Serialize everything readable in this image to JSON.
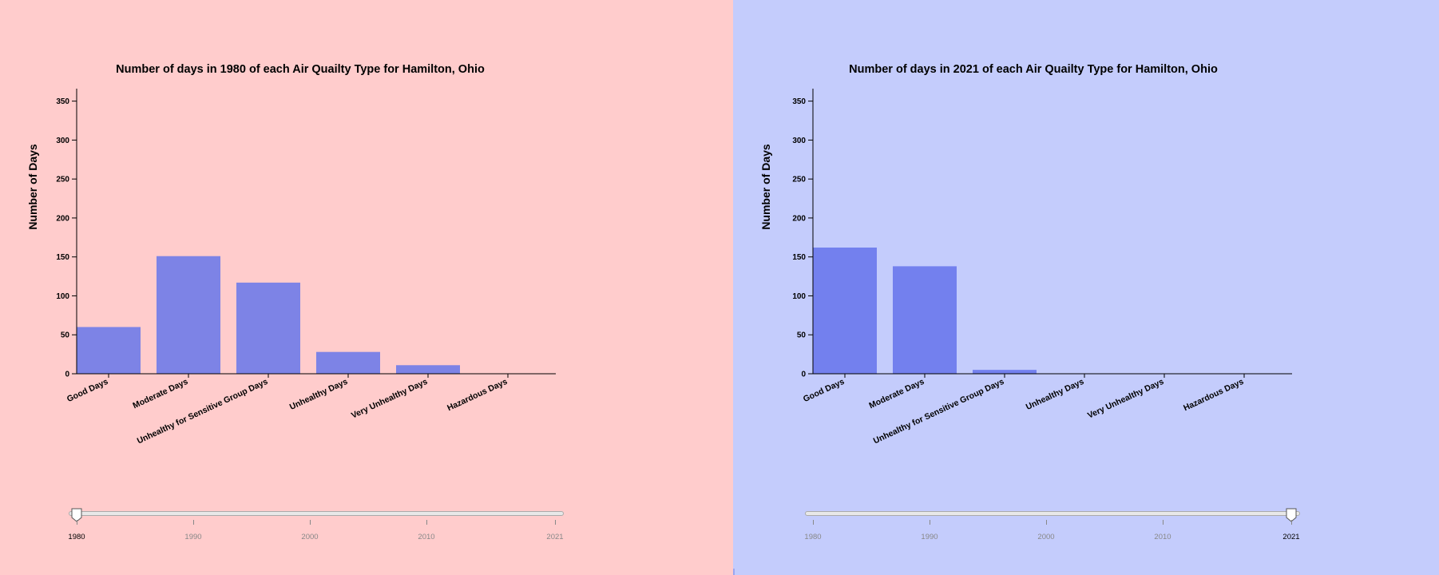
{
  "panels": [
    {
      "title": "Number of days in 1980 of each Air Quailty Type for Hamilton, Ohio",
      "selected_year": "1980",
      "color": "#ffcccc"
    },
    {
      "title": "Number of days in 2021 of each Air Quailty Type for Hamilton, Ohio",
      "selected_year": "2021",
      "color": "#c4ccfc"
    }
  ],
  "slider": {
    "tick_labels": [
      "1980",
      "1990",
      "2000",
      "2010",
      "2021"
    ],
    "range": [
      1980,
      2021
    ]
  },
  "chart_data": [
    {
      "type": "bar",
      "title": "Number of days in 1980 of each Air Quailty Type for Hamilton, Ohio",
      "ylabel": "Number of Days",
      "xlabel": "",
      "categories": [
        "Good Days",
        "Moderate Days",
        "Unhealthy for Sensitive Group Days",
        "Unhealthy Days",
        "Very Unhealthy Days",
        "Hazardous Days"
      ],
      "values": [
        60,
        151,
        117,
        28,
        11,
        0
      ],
      "ylim": [
        0,
        365
      ],
      "yticks": [
        0,
        50,
        100,
        150,
        200,
        250,
        300,
        350
      ],
      "bar_color": "#7d83e6"
    },
    {
      "type": "bar",
      "title": "Number of days in 2021 of each Air Quailty Type for Hamilton, Ohio",
      "ylabel": "Number of Days",
      "xlabel": "",
      "categories": [
        "Good Days",
        "Moderate Days",
        "Unhealthy for Sensitive Group Days",
        "Unhealthy Days",
        "Very Unhealthy Days",
        "Hazardous Days"
      ],
      "values": [
        162,
        138,
        5,
        0,
        0,
        0
      ],
      "ylim": [
        0,
        365
      ],
      "yticks": [
        0,
        50,
        100,
        150,
        200,
        250,
        300,
        350
      ],
      "bar_color": "#7380ee"
    }
  ]
}
